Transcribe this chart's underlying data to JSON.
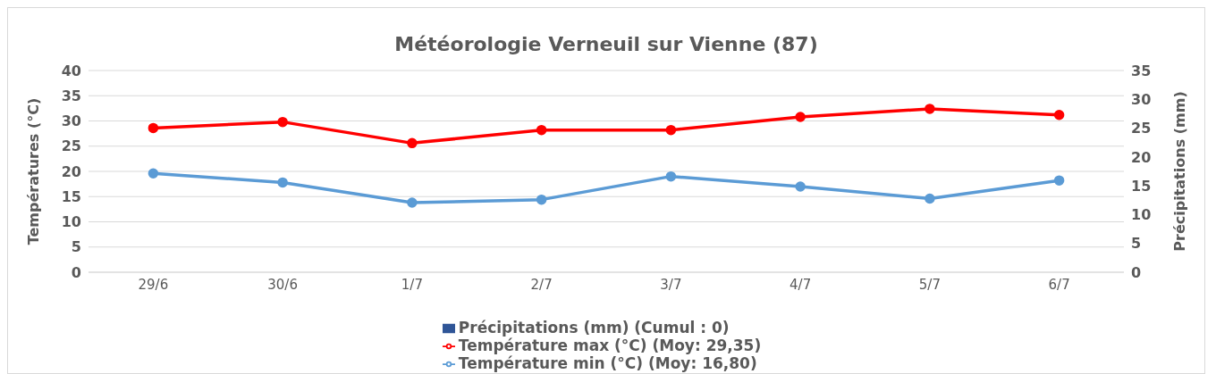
{
  "chart_data": {
    "type": "line",
    "title": "Météorologie Verneuil sur Vienne (87)",
    "ylabel": "Températures (°C)",
    "y2label": "Précipitations (mm)",
    "categories": [
      "29/6",
      "30/6",
      "1/7",
      "2/7",
      "3/7",
      "4/7",
      "5/7",
      "6/7"
    ],
    "series": [
      {
        "name": "Précipitations (mm) (Cumul : 0)",
        "type": "bar",
        "axis": "y2",
        "color": "#2f5597",
        "values": [
          0,
          0,
          0,
          0,
          0,
          0,
          0,
          0
        ]
      },
      {
        "name": "Température max (°C) (Moy: 29,35)",
        "color": "#ff0000",
        "values": [
          28.6,
          29.8,
          25.6,
          28.2,
          28.2,
          30.8,
          32.4,
          31.2
        ]
      },
      {
        "name": "Température min (°C) (Moy: 16,80)",
        "color": "#5b9bd5",
        "values": [
          19.6,
          17.8,
          13.8,
          14.4,
          19.0,
          17.0,
          14.6,
          18.2
        ]
      }
    ],
    "ylim": [
      0,
      40
    ],
    "yticks": [
      0,
      5,
      10,
      15,
      20,
      25,
      30,
      35,
      40
    ],
    "y2lim": [
      0,
      35
    ],
    "y2ticks": [
      0,
      5,
      10,
      15,
      20,
      25,
      30,
      35
    ],
    "grid": "y",
    "legend": "bottom",
    "marker": "circle",
    "line_style": "solid"
  }
}
